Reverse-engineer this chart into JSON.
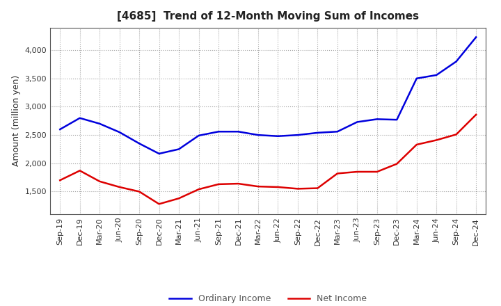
{
  "title": "[4685]  Trend of 12-Month Moving Sum of Incomes",
  "ylabel": "Amount (million yen)",
  "x_labels": [
    "Sep-19",
    "Dec-19",
    "Mar-20",
    "Jun-20",
    "Sep-20",
    "Dec-20",
    "Mar-21",
    "Jun-21",
    "Sep-21",
    "Dec-21",
    "Mar-22",
    "Jun-22",
    "Sep-22",
    "Dec-22",
    "Mar-23",
    "Jun-23",
    "Sep-23",
    "Dec-23",
    "Mar-24",
    "Jun-24",
    "Sep-24",
    "Dec-24"
  ],
  "ordinary_income": [
    2600,
    2800,
    2700,
    2550,
    2350,
    2170,
    2250,
    2490,
    2560,
    2560,
    2500,
    2480,
    2500,
    2540,
    2560,
    2730,
    2780,
    2770,
    3500,
    3560,
    3800,
    4230
  ],
  "net_income": [
    1700,
    1870,
    1680,
    1580,
    1500,
    1280,
    1380,
    1540,
    1630,
    1640,
    1590,
    1580,
    1550,
    1560,
    1820,
    1850,
    1850,
    1990,
    2330,
    2410,
    2510,
    2860
  ],
  "ordinary_color": "#0000dd",
  "net_color": "#dd0000",
  "ylim_min": 1100,
  "ylim_max": 4400,
  "yticks": [
    1500,
    2000,
    2500,
    3000,
    3500,
    4000
  ],
  "background_color": "#ffffff",
  "grid_color": "#999999",
  "line_width": 1.8,
  "title_fontsize": 11,
  "axis_fontsize": 8,
  "ylabel_fontsize": 9
}
